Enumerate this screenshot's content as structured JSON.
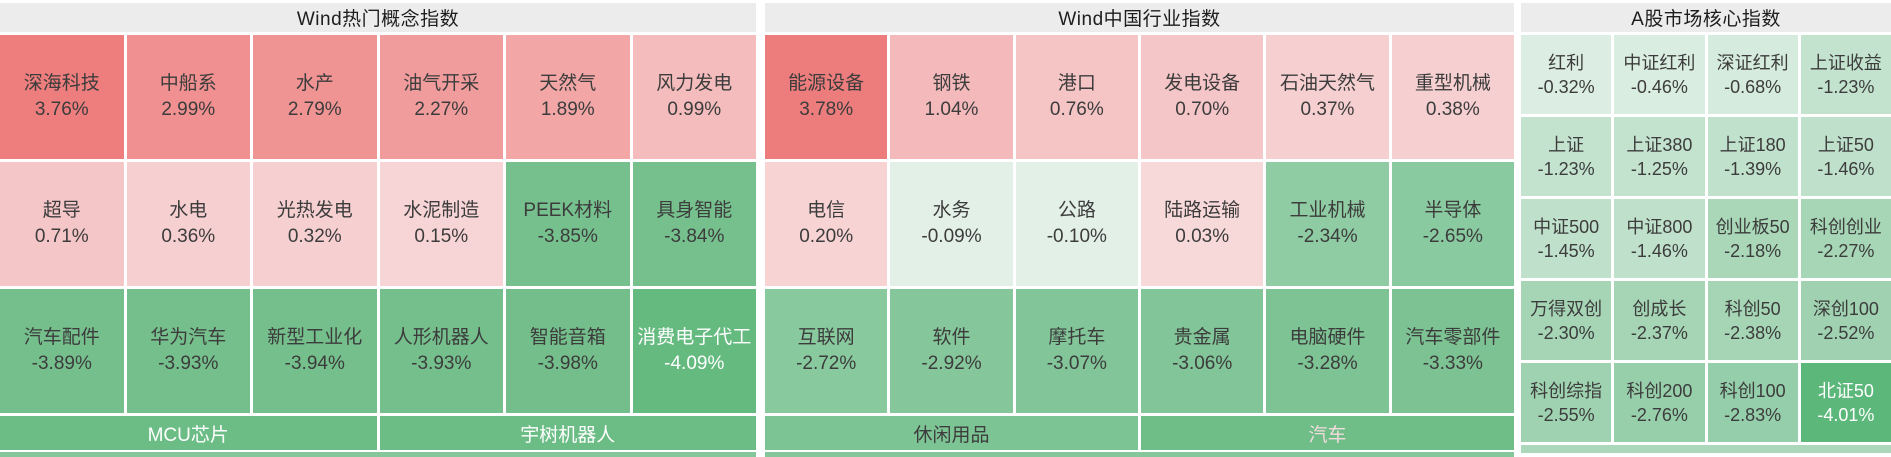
{
  "chart_data": {
    "type": "heatmap",
    "panels": [
      {
        "title": "Wind热门概念指数",
        "columns": 6,
        "rows": [
          [
            {
              "name": "深海科技",
              "value": "3.76%",
              "bg": "#ee7d7d"
            },
            {
              "name": "中船系",
              "value": "2.99%",
              "bg": "#f09090"
            },
            {
              "name": "水产",
              "value": "2.79%",
              "bg": "#f09393"
            },
            {
              "name": "油气开采",
              "value": "2.27%",
              "bg": "#f19c9c"
            },
            {
              "name": "天然气",
              "value": "1.89%",
              "bg": "#f2a6a6"
            },
            {
              "name": "风力发电",
              "value": "0.99%",
              "bg": "#f4bcbd"
            }
          ],
          [
            {
              "name": "超导",
              "value": "0.71%",
              "bg": "#f5c6c7"
            },
            {
              "name": "水电",
              "value": "0.36%",
              "bg": "#f6cfd0"
            },
            {
              "name": "光热发电",
              "value": "0.32%",
              "bg": "#f6d0d1"
            },
            {
              "name": "水泥制造",
              "value": "0.15%",
              "bg": "#f7d4d5"
            },
            {
              "name": "PEEK材料",
              "value": "-3.85%",
              "bg": "#76c08e"
            },
            {
              "name": "具身智能",
              "value": "-3.84%",
              "bg": "#76c08e"
            }
          ],
          [
            {
              "name": "汽车配件",
              "value": "-3.89%",
              "bg": "#75bf8d"
            },
            {
              "name": "华为汽车",
              "value": "-3.93%",
              "bg": "#74bf8c"
            },
            {
              "name": "新型工业化",
              "value": "-3.94%",
              "bg": "#74bf8c"
            },
            {
              "name": "人形机器人",
              "value": "-3.93%",
              "bg": "#74bf8c"
            },
            {
              "name": "智能音箱",
              "value": "-3.98%",
              "bg": "#73be8b"
            },
            {
              "name": "消费电子代工",
              "value": "-4.09%",
              "bg": "#65ba80",
              "fg": "#ffffff"
            }
          ]
        ],
        "footer": [
          {
            "label": "MCU芯片",
            "bg": "#6bbd85",
            "fg": "#ffffff"
          },
          {
            "label": "宇树机器人",
            "bg": "#6bbd85",
            "fg": "#ffffff"
          }
        ],
        "strip_bg": "#85c79b"
      },
      {
        "title": "Wind中国行业指数",
        "columns": 6,
        "rows": [
          [
            {
              "name": "能源设备",
              "value": "3.78%",
              "bg": "#ed7c7c"
            },
            {
              "name": "钢铁",
              "value": "1.04%",
              "bg": "#f4b9ba"
            },
            {
              "name": "港口",
              "value": "0.76%",
              "bg": "#f5c4c5"
            },
            {
              "name": "发电设备",
              "value": "0.70%",
              "bg": "#f5c6c7"
            },
            {
              "name": "石油天然气",
              "value": "0.37%",
              "bg": "#f6cfd0"
            },
            {
              "name": "重型机械",
              "value": "0.38%",
              "bg": "#f6cfd0"
            }
          ],
          [
            {
              "name": "电信",
              "value": "0.20%",
              "bg": "#f7d3d4"
            },
            {
              "name": "水务",
              "value": "-0.09%",
              "bg": "#e3f0e8"
            },
            {
              "name": "公路",
              "value": "-0.10%",
              "bg": "#e3f0e8"
            },
            {
              "name": "陆路运输",
              "value": "0.03%",
              "bg": "#f8d9da"
            },
            {
              "name": "工业机械",
              "value": "-2.34%",
              "bg": "#8fcca3"
            },
            {
              "name": "半导体",
              "value": "-2.65%",
              "bg": "#8acaa0"
            }
          ],
          [
            {
              "name": "互联网",
              "value": "-2.72%",
              "bg": "#88c99e"
            },
            {
              "name": "软件",
              "value": "-2.92%",
              "bg": "#85c79b"
            },
            {
              "name": "摩托车",
              "value": "-3.07%",
              "bg": "#81c598"
            },
            {
              "name": "贵金属",
              "value": "-3.06%",
              "bg": "#81c598"
            },
            {
              "name": "电脑硬件",
              "value": "-3.28%",
              "bg": "#7dc394"
            },
            {
              "name": "汽车零部件",
              "value": "-3.33%",
              "bg": "#7cc293"
            }
          ]
        ],
        "footer": [
          {
            "label": "休闲用品",
            "bg": "#7dc495",
            "fg": "#3d3d3d"
          },
          {
            "label": "汽车",
            "bg": "#6fbe88",
            "fg": "#f3dbde"
          }
        ],
        "strip_bg": "#85c79b"
      },
      {
        "title": "A股市场核心指数",
        "columns": 4,
        "rows": [
          [
            {
              "name": "红利",
              "value": "-0.32%",
              "bg": "#dceee3"
            },
            {
              "name": "中证红利",
              "value": "-0.46%",
              "bg": "#daede1"
            },
            {
              "name": "深证红利",
              "value": "-0.68%",
              "bg": "#d5ebdd"
            },
            {
              "name": "上证收益",
              "value": "-1.23%",
              "bg": "#c3e3ce"
            }
          ],
          [
            {
              "name": "上证",
              "value": "-1.23%",
              "bg": "#c3e3ce"
            },
            {
              "name": "上证380",
              "value": "-1.25%",
              "bg": "#c3e3ce"
            },
            {
              "name": "上证180",
              "value": "-1.39%",
              "bg": "#c0e1cb"
            },
            {
              "name": "上证50",
              "value": "-1.46%",
              "bg": "#bfe0ca"
            }
          ],
          [
            {
              "name": "中证500",
              "value": "-1.45%",
              "bg": "#bfe0ca"
            },
            {
              "name": "中证800",
              "value": "-1.46%",
              "bg": "#bfe0ca"
            },
            {
              "name": "创业板50",
              "value": "-2.18%",
              "bg": "#a9d7b8"
            },
            {
              "name": "科创创业",
              "value": "-2.27%",
              "bg": "#a7d6b6"
            }
          ],
          [
            {
              "name": "万得双创",
              "value": "-2.30%",
              "bg": "#a6d5b6"
            },
            {
              "name": "创成长",
              "value": "-2.37%",
              "bg": "#a5d5b4"
            },
            {
              "name": "科创50",
              "value": "-2.38%",
              "bg": "#a5d5b4"
            },
            {
              "name": "深创100",
              "value": "-2.52%",
              "bg": "#a0d2b1"
            }
          ],
          [
            {
              "name": "科创综指",
              "value": "-2.55%",
              "bg": "#9fd2b0"
            },
            {
              "name": "科创200",
              "value": "-2.76%",
              "bg": "#97cfab"
            },
            {
              "name": "科创100",
              "value": "-2.83%",
              "bg": "#95ceaa"
            },
            {
              "name": "北证50",
              "value": "-4.01%",
              "bg": "#5cb77a",
              "fg": "#ffffff"
            }
          ]
        ],
        "strip_bg": "#abd8ba"
      }
    ]
  }
}
